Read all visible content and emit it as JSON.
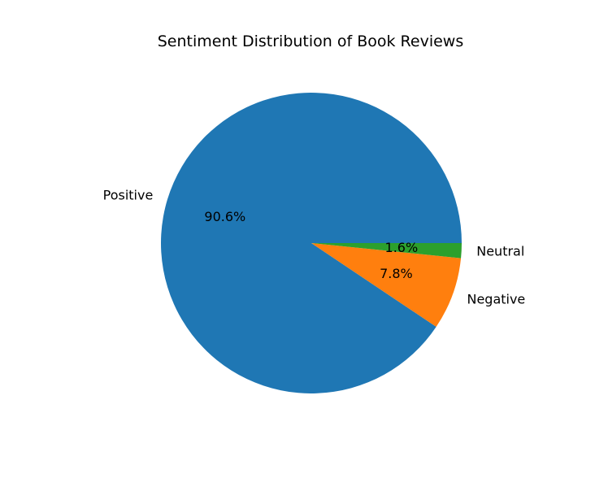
{
  "chart_data": {
    "type": "pie",
    "title": "Sentiment Distribution of Book Reviews",
    "slices": [
      {
        "label": "Positive",
        "value": 90.6,
        "pct_label": "90.6%",
        "color": "#1f77b4"
      },
      {
        "label": "Negative",
        "value": 7.8,
        "pct_label": "7.8%",
        "color": "#ff7f0e"
      },
      {
        "label": "Neutral",
        "value": 1.6,
        "pct_label": "1.6%",
        "color": "#2ca02c"
      }
    ],
    "start_angle_deg": 0,
    "direction": "counterclockwise"
  }
}
